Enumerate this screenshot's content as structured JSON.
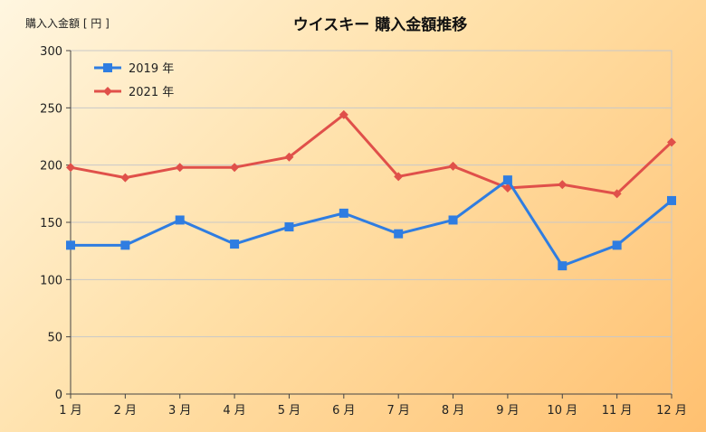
{
  "chart_data": {
    "type": "line",
    "title": "ウイスキー 購入金額推移",
    "ylabel": "購入入金額 [ 円 ]",
    "xlabel": "",
    "categories": [
      "1 月",
      "2 月",
      "3 月",
      "4 月",
      "5 月",
      "6 月",
      "7 月",
      "8 月",
      "9 月",
      "10 月",
      "11 月",
      "12 月"
    ],
    "ylim": [
      0,
      300
    ],
    "yticks": [
      0,
      50,
      100,
      150,
      200,
      250,
      300
    ],
    "grid": true,
    "legend_position": "top-left",
    "series": [
      {
        "name": "2019 年",
        "color": "#2f7de1",
        "marker": "square",
        "values": [
          130,
          130,
          152,
          131,
          146,
          158,
          140,
          152,
          187,
          112,
          130,
          169
        ]
      },
      {
        "name": "2021 年",
        "color": "#e0504a",
        "marker": "diamond",
        "values": [
          198,
          189,
          198,
          198,
          207,
          244,
          190,
          199,
          180,
          183,
          175,
          220
        ]
      }
    ]
  }
}
